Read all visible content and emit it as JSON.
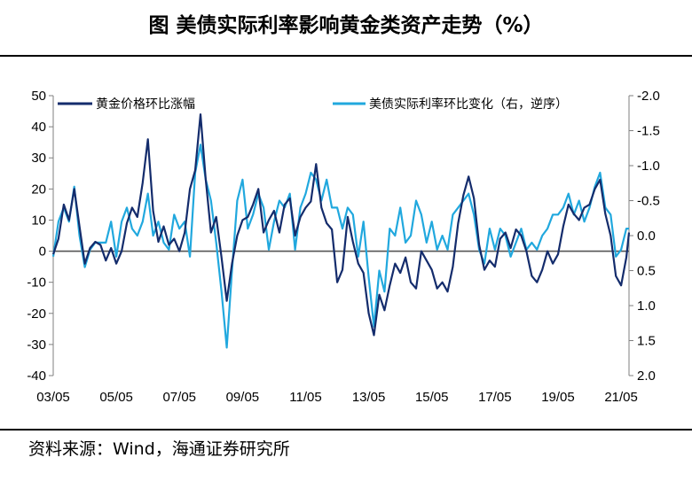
{
  "title": "图  美债实际利率影响黄金类资产走势（%）",
  "source": "资料来源：Wind，海通证券研究所",
  "chart_data": {
    "type": "line",
    "x_ticks": [
      "03/05",
      "05/05",
      "07/05",
      "09/05",
      "11/05",
      "13/05",
      "15/05",
      "17/05",
      "19/05",
      "21/05"
    ],
    "x_range": [
      "2003-05",
      "2021-08"
    ],
    "y_left": {
      "min": -40,
      "max": 50,
      "ticks": [
        -40,
        -30,
        -20,
        -10,
        0,
        10,
        20,
        30,
        40,
        50
      ]
    },
    "y_right": {
      "min": -2.0,
      "max": 2.0,
      "inverted": true,
      "ticks": [
        "-2.0",
        "-1.5",
        "-1.0",
        "-0.5",
        "0.0",
        "0.5",
        "1.0",
        "1.5",
        "2.0"
      ]
    },
    "colors": {
      "gold": "#142c6c",
      "rate": "#21a8de",
      "axis": "#7f7f7f"
    },
    "series": [
      {
        "name": "黄金价格环比涨幅",
        "axis": "left",
        "points": [
          [
            "2003-05",
            -1
          ],
          [
            "2003-07",
            4
          ],
          [
            "2003-09",
            15
          ],
          [
            "2003-11",
            10
          ],
          [
            "2004-01",
            20
          ],
          [
            "2004-03",
            8
          ],
          [
            "2004-05",
            -4
          ],
          [
            "2004-07",
            1
          ],
          [
            "2004-09",
            3
          ],
          [
            "2004-11",
            2
          ],
          [
            "2005-01",
            -3
          ],
          [
            "2005-03",
            1
          ],
          [
            "2005-05",
            -4
          ],
          [
            "2005-07",
            0
          ],
          [
            "2005-09",
            9
          ],
          [
            "2005-11",
            14
          ],
          [
            "2006-01",
            11
          ],
          [
            "2006-03",
            22
          ],
          [
            "2006-05",
            36
          ],
          [
            "2006-07",
            13
          ],
          [
            "2006-09",
            3
          ],
          [
            "2006-11",
            8
          ],
          [
            "2007-01",
            2
          ],
          [
            "2007-03",
            4
          ],
          [
            "2007-05",
            0
          ],
          [
            "2007-07",
            6
          ],
          [
            "2007-09",
            20
          ],
          [
            "2007-11",
            26
          ],
          [
            "2008-01",
            44
          ],
          [
            "2008-03",
            23
          ],
          [
            "2008-05",
            6
          ],
          [
            "2008-07",
            11
          ],
          [
            "2008-09",
            -2
          ],
          [
            "2008-11",
            -16
          ],
          [
            "2009-01",
            -4
          ],
          [
            "2009-03",
            5
          ],
          [
            "2009-05",
            10
          ],
          [
            "2009-07",
            11
          ],
          [
            "2009-09",
            15
          ],
          [
            "2009-11",
            20
          ],
          [
            "2010-01",
            6
          ],
          [
            "2010-03",
            10
          ],
          [
            "2010-05",
            13
          ],
          [
            "2010-07",
            6
          ],
          [
            "2010-09",
            15
          ],
          [
            "2010-11",
            17
          ],
          [
            "2011-01",
            5
          ],
          [
            "2011-03",
            11
          ],
          [
            "2011-05",
            14
          ],
          [
            "2011-07",
            16
          ],
          [
            "2011-09",
            28
          ],
          [
            "2011-11",
            14
          ],
          [
            "2012-01",
            9
          ],
          [
            "2012-03",
            7
          ],
          [
            "2012-05",
            -10
          ],
          [
            "2012-07",
            -6
          ],
          [
            "2012-09",
            11
          ],
          [
            "2012-11",
            3
          ],
          [
            "2013-01",
            -4
          ],
          [
            "2013-03",
            -7
          ],
          [
            "2013-05",
            -20
          ],
          [
            "2013-07",
            -27
          ],
          [
            "2013-09",
            -14
          ],
          [
            "2013-11",
            -19
          ],
          [
            "2014-01",
            -11
          ],
          [
            "2014-03",
            -4
          ],
          [
            "2014-05",
            -7
          ],
          [
            "2014-07",
            -2
          ],
          [
            "2014-09",
            -10
          ],
          [
            "2014-11",
            -12
          ],
          [
            "2015-01",
            0
          ],
          [
            "2015-03",
            -3
          ],
          [
            "2015-05",
            -6
          ],
          [
            "2015-07",
            -12
          ],
          [
            "2015-09",
            -10
          ],
          [
            "2015-11",
            -13
          ],
          [
            "2016-01",
            -5
          ],
          [
            "2016-03",
            9
          ],
          [
            "2016-05",
            18
          ],
          [
            "2016-07",
            24
          ],
          [
            "2016-09",
            17
          ],
          [
            "2016-11",
            2
          ],
          [
            "2017-01",
            -6
          ],
          [
            "2017-03",
            -3
          ],
          [
            "2017-05",
            -5
          ],
          [
            "2017-07",
            4
          ],
          [
            "2017-09",
            6
          ],
          [
            "2017-11",
            1
          ],
          [
            "2018-01",
            7
          ],
          [
            "2018-03",
            5
          ],
          [
            "2018-05",
            0
          ],
          [
            "2018-07",
            -8
          ],
          [
            "2018-09",
            -10
          ],
          [
            "2018-11",
            -6
          ],
          [
            "2019-01",
            0
          ],
          [
            "2019-03",
            -4
          ],
          [
            "2019-05",
            -1
          ],
          [
            "2019-07",
            8
          ],
          [
            "2019-09",
            15
          ],
          [
            "2019-11",
            12
          ],
          [
            "2020-01",
            10
          ],
          [
            "2020-03",
            14
          ],
          [
            "2020-05",
            15
          ],
          [
            "2020-07",
            20
          ],
          [
            "2020-09",
            23
          ],
          [
            "2020-11",
            12
          ],
          [
            "2021-01",
            5
          ],
          [
            "2021-03",
            -8
          ],
          [
            "2021-05",
            -11
          ],
          [
            "2021-07",
            -2
          ],
          [
            "2021-08",
            6
          ]
        ]
      },
      {
        "name": "美债实际利率环比变化（右，逆序）",
        "axis": "right",
        "points": [
          [
            "2003-05",
            0.3
          ],
          [
            "2003-07",
            -0.2
          ],
          [
            "2003-09",
            -0.4
          ],
          [
            "2003-11",
            -0.2
          ],
          [
            "2004-01",
            -0.7
          ],
          [
            "2004-03",
            0.0
          ],
          [
            "2004-05",
            0.45
          ],
          [
            "2004-07",
            0.2
          ],
          [
            "2004-09",
            0.1
          ],
          [
            "2004-11",
            0.1
          ],
          [
            "2005-01",
            0.1
          ],
          [
            "2005-03",
            -0.2
          ],
          [
            "2005-05",
            0.3
          ],
          [
            "2005-07",
            -0.2
          ],
          [
            "2005-09",
            -0.4
          ],
          [
            "2005-11",
            -0.1
          ],
          [
            "2006-01",
            0.0
          ],
          [
            "2006-03",
            -0.2
          ],
          [
            "2006-05",
            -0.6
          ],
          [
            "2006-07",
            0.0
          ],
          [
            "2006-09",
            -0.2
          ],
          [
            "2006-11",
            0.1
          ],
          [
            "2007-01",
            0.2
          ],
          [
            "2007-03",
            -0.3
          ],
          [
            "2007-05",
            -0.1
          ],
          [
            "2007-07",
            -0.2
          ],
          [
            "2007-09",
            0.3
          ],
          [
            "2007-11",
            -0.9
          ],
          [
            "2008-01",
            -1.3
          ],
          [
            "2008-03",
            -0.8
          ],
          [
            "2008-05",
            -0.5
          ],
          [
            "2008-07",
            0.1
          ],
          [
            "2008-09",
            0.8
          ],
          [
            "2008-11",
            1.6
          ],
          [
            "2009-01",
            0.5
          ],
          [
            "2009-03",
            -0.5
          ],
          [
            "2009-05",
            -0.8
          ],
          [
            "2009-07",
            -0.1
          ],
          [
            "2009-09",
            -0.3
          ],
          [
            "2009-11",
            -0.6
          ],
          [
            "2010-01",
            -0.4
          ],
          [
            "2010-03",
            0.2
          ],
          [
            "2010-05",
            -0.2
          ],
          [
            "2010-07",
            -0.5
          ],
          [
            "2010-09",
            -0.4
          ],
          [
            "2010-11",
            -0.6
          ],
          [
            "2011-01",
            0.2
          ],
          [
            "2011-03",
            -0.4
          ],
          [
            "2011-05",
            -0.6
          ],
          [
            "2011-07",
            -0.9
          ],
          [
            "2011-09",
            -0.8
          ],
          [
            "2011-11",
            -0.5
          ],
          [
            "2012-01",
            -0.8
          ],
          [
            "2012-03",
            -0.4
          ],
          [
            "2012-05",
            -0.4
          ],
          [
            "2012-07",
            -0.1
          ],
          [
            "2012-09",
            -0.4
          ],
          [
            "2012-11",
            -0.3
          ],
          [
            "2013-01",
            0.3
          ],
          [
            "2013-03",
            -0.2
          ],
          [
            "2013-05",
            0.6
          ],
          [
            "2013-07",
            1.3
          ],
          [
            "2013-09",
            0.5
          ],
          [
            "2013-11",
            0.8
          ],
          [
            "2014-01",
            -0.1
          ],
          [
            "2014-03",
            0.0
          ],
          [
            "2014-05",
            -0.4
          ],
          [
            "2014-07",
            0.1
          ],
          [
            "2014-09",
            0.0
          ],
          [
            "2014-11",
            -0.5
          ],
          [
            "2015-01",
            -0.3
          ],
          [
            "2015-03",
            0.1
          ],
          [
            "2015-05",
            -0.2
          ],
          [
            "2015-07",
            0.2
          ],
          [
            "2015-09",
            0.0
          ],
          [
            "2015-11",
            0.2
          ],
          [
            "2016-01",
            -0.3
          ],
          [
            "2016-03",
            -0.4
          ],
          [
            "2016-05",
            -0.5
          ],
          [
            "2016-07",
            -0.6
          ],
          [
            "2016-09",
            -0.3
          ],
          [
            "2016-11",
            0.2
          ],
          [
            "2017-01",
            0.4
          ],
          [
            "2017-03",
            -0.1
          ],
          [
            "2017-05",
            0.2
          ],
          [
            "2017-07",
            -0.1
          ],
          [
            "2017-09",
            0.0
          ],
          [
            "2017-11",
            0.3
          ],
          [
            "2018-01",
            0.1
          ],
          [
            "2018-03",
            -0.1
          ],
          [
            "2018-05",
            0.2
          ],
          [
            "2018-07",
            0.1
          ],
          [
            "2018-09",
            0.2
          ],
          [
            "2018-11",
            0.0
          ],
          [
            "2019-01",
            -0.1
          ],
          [
            "2019-03",
            -0.3
          ],
          [
            "2019-05",
            -0.3
          ],
          [
            "2019-07",
            -0.4
          ],
          [
            "2019-09",
            -0.6
          ],
          [
            "2019-11",
            -0.3
          ],
          [
            "2020-01",
            -0.5
          ],
          [
            "2020-03",
            -0.2
          ],
          [
            "2020-05",
            -0.4
          ],
          [
            "2020-07",
            -0.7
          ],
          [
            "2020-09",
            -0.9
          ],
          [
            "2020-11",
            -0.4
          ],
          [
            "2021-01",
            -0.3
          ],
          [
            "2021-03",
            0.3
          ],
          [
            "2021-05",
            0.2
          ],
          [
            "2021-07",
            -0.1
          ],
          [
            "2021-08",
            -0.1
          ]
        ]
      }
    ]
  }
}
